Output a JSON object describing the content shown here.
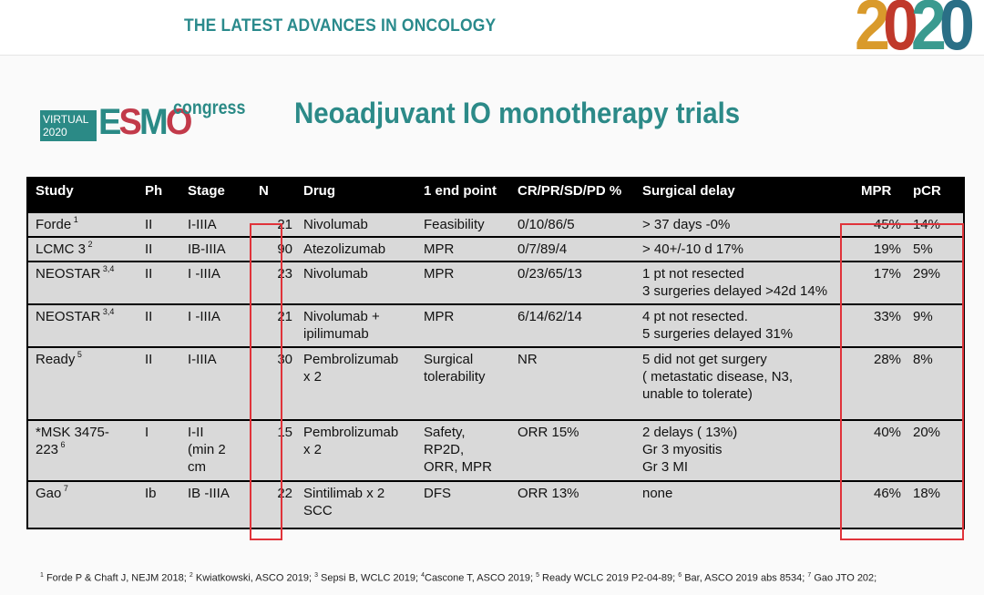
{
  "banner": {
    "title": "THE LATEST ADVANCES IN ONCOLOGY",
    "year_digits": [
      "2",
      "0",
      "2",
      "0"
    ]
  },
  "logo": {
    "virtual_line1": "VIRTUAL",
    "virtual_line2": "2020",
    "esmo_letters": [
      "E",
      "S",
      "M",
      "O"
    ],
    "congress": "congress"
  },
  "slide": {
    "title": "Neoadjuvant IO monotherapy trials"
  },
  "table": {
    "headers": {
      "study": "Study",
      "ph": "Ph",
      "stage": "Stage",
      "n": "N",
      "drug": "Drug",
      "endpoint": "1 end point",
      "response": "CR/PR/SD/PD %",
      "delay": "Surgical delay",
      "mpr": "MPR",
      "pcr": "pCR"
    },
    "rows": [
      {
        "study": "Forde",
        "sup": "1",
        "ph": "II",
        "stage": "I-IIIA",
        "n": "21",
        "drug": "Nivolumab",
        "endpoint": "Feasibility",
        "response": "0/10/86/5",
        "delay": "> 37 days -0%",
        "mpr": "45%",
        "pcr": "14%"
      },
      {
        "study": "LCMC 3",
        "sup": "2",
        "ph": "II",
        "stage": "IB-IIIA",
        "n": "90",
        "drug": "Atezolizumab",
        "endpoint": "MPR",
        "response": "0/7/89/4",
        "delay": "> 40+/-10 d 17%",
        "mpr": "19%",
        "pcr": "5%"
      },
      {
        "study": "NEOSTAR",
        "sup": "3,4",
        "ph": "II",
        "stage": "I -IIIA",
        "n": "23",
        "drug": "Nivolumab",
        "endpoint": "MPR",
        "response": "0/23/65/13",
        "delay": "1 pt not resected\n3 surgeries delayed >42d 14%",
        "mpr": "17%",
        "pcr": "29%"
      },
      {
        "study": "NEOSTAR",
        "sup": "3,4",
        "ph": "II",
        "stage": "I -IIIA",
        "n": "21",
        "drug": "Nivolumab +\nipilimumab",
        "endpoint": "MPR",
        "response": "6/14/62/14",
        "delay": "4 pt not resected.\n5 surgeries delayed 31%",
        "mpr": "33%",
        "pcr": "9%"
      },
      {
        "study": "Ready",
        "sup": "5",
        "ph": "II",
        "stage": "I-IIIA",
        "n": "30",
        "drug": "Pembrolizumab\nx 2",
        "endpoint": "Surgical\ntolerability",
        "response": "NR",
        "delay": "5 did not get surgery\n( metastatic disease, N3,\nunable to tolerate)",
        "mpr": "28%",
        "pcr": "8%"
      },
      {
        "study": "*MSK 3475-\n223",
        "sup": "6",
        "ph": "I",
        "stage": "I-II\n(min 2\ncm",
        "n": "15",
        "drug": "Pembrolizumab\nx 2",
        "endpoint": "Safety,\nRP2D,\nORR, MPR",
        "response": "ORR 15%",
        "delay": "2 delays ( 13%)\nGr 3 myositis\nGr 3 MI",
        "mpr": "40%",
        "pcr": "20%"
      },
      {
        "study": "Gao",
        "sup": "7",
        "ph": "Ib",
        "stage": "IB -IIIA",
        "n": "22",
        "drug": "Sintilimab x 2\nSCC",
        "endpoint": "DFS",
        "response": "ORR 13%",
        "delay": "none",
        "mpr": "46%",
        "pcr": "18%"
      }
    ]
  },
  "footnote": {
    "items": [
      {
        "sup": "1",
        "text": " Forde P & Chaft J, NEJM 2018; "
      },
      {
        "sup": "2",
        "text": " Kwiatkowski, ASCO 2019; "
      },
      {
        "sup": "3",
        "text": " Sepsi B, WCLC 2019; "
      },
      {
        "sup": "4",
        "text": "Cascone T, ASCO 2019; "
      },
      {
        "sup": "5",
        "text": "  Ready WCLC 2019 P2-04-89; "
      },
      {
        "sup": "6",
        "text": " Bar, ASCO 2019 abs 8534; "
      },
      {
        "sup": "7",
        "text": " Gao JTO 202;"
      }
    ]
  },
  "colors": {
    "title_teal": "#2c8a88",
    "header_black": "#000000",
    "cell_grey": "#d9d9d9",
    "highlight_red": "#e0333a"
  }
}
